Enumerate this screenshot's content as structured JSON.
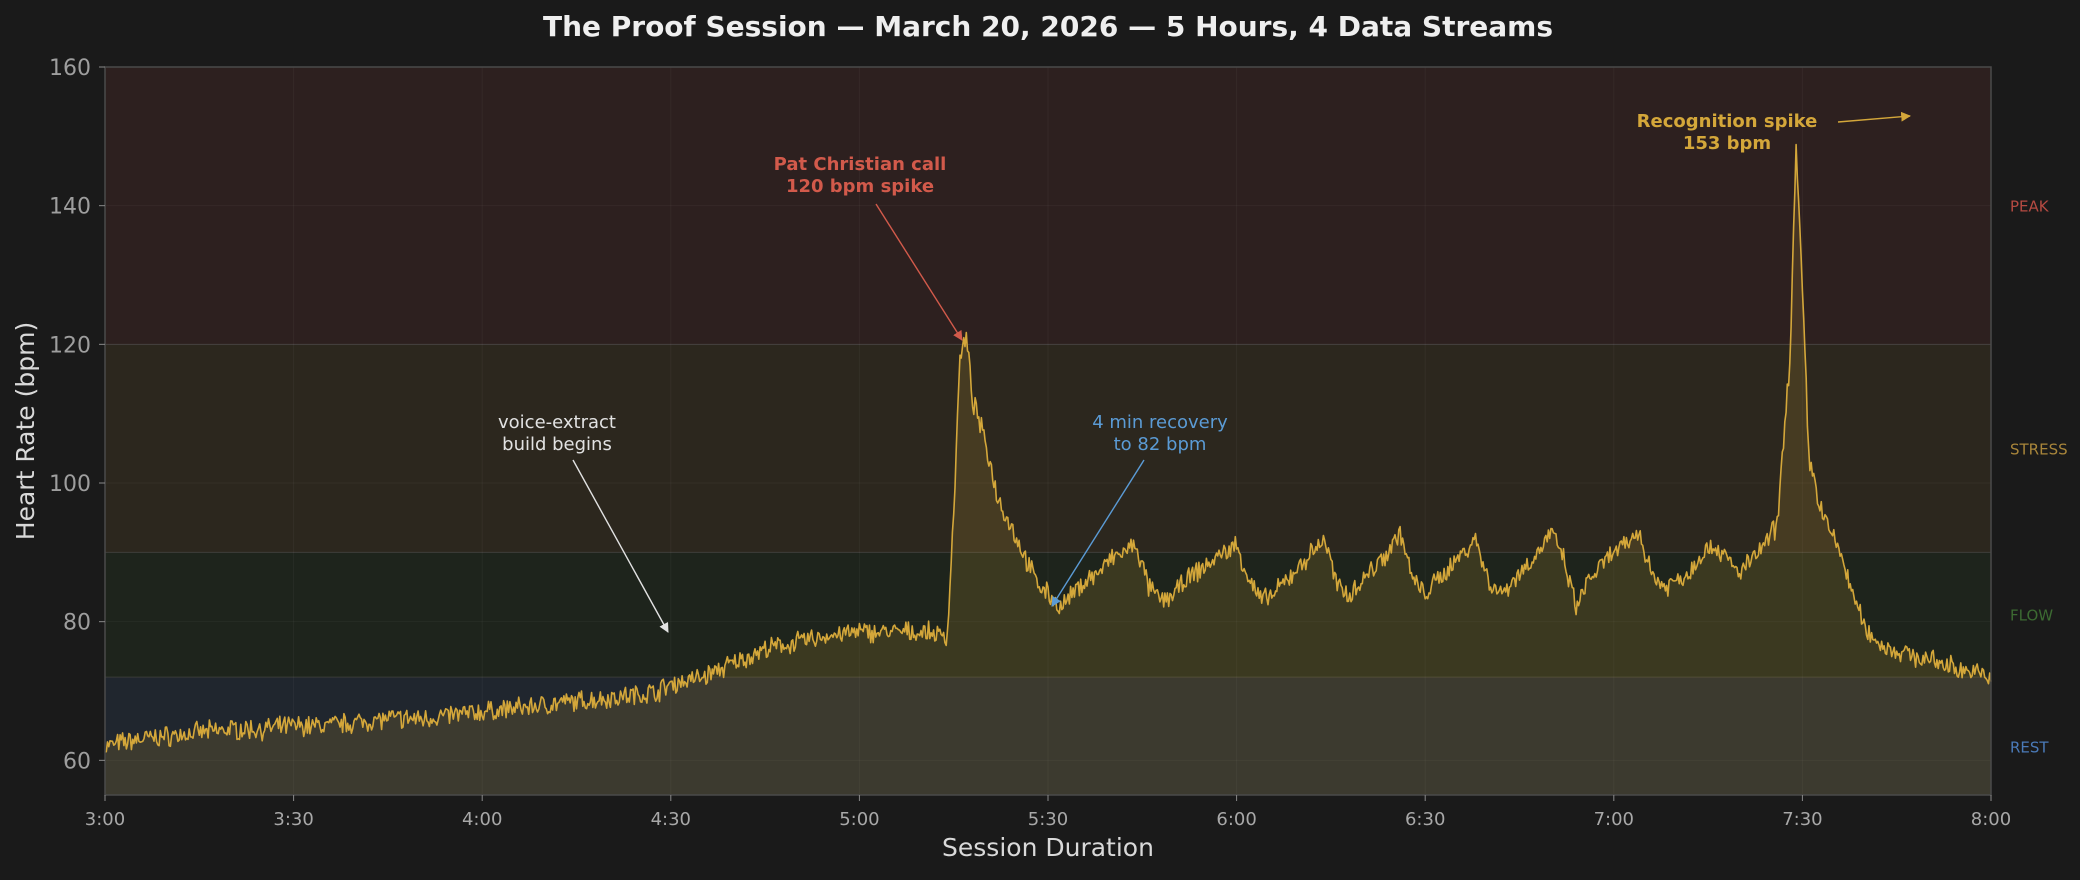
{
  "chart_data": {
    "type": "area",
    "title": "The Proof Session — March 20, 2026 — 5 Hours, 4 Data Streams",
    "xlabel": "Session Duration",
    "ylabel": "Heart Rate (bpm)",
    "x_ticks": [
      "3:00",
      "3:30",
      "4:00",
      "4:30",
      "5:00",
      "5:30",
      "6:00",
      "6:30",
      "7:00",
      "7:30",
      "8:00"
    ],
    "xlim_minutes": [
      0,
      300
    ],
    "ylim": [
      55,
      160
    ],
    "y_ticks": [
      60,
      80,
      100,
      120,
      140,
      160
    ],
    "grid": true,
    "line_color": "#d4a73a",
    "zones": [
      {
        "name": "REST",
        "from": 55,
        "to": 72,
        "color": "#4a7ab8"
      },
      {
        "name": "FLOW",
        "from": 72,
        "to": 90,
        "color": "#3c6a32"
      },
      {
        "name": "STRESS",
        "from": 90,
        "to": 120,
        "color": "#a8853a"
      },
      {
        "name": "PEAK",
        "from": 120,
        "to": 160,
        "color": "#b54a42"
      }
    ],
    "series": [
      {
        "x_minutes": [
          0,
          5,
          10,
          15,
          20,
          25,
          30,
          35,
          40,
          45,
          50,
          55,
          60,
          65,
          70,
          75,
          80,
          85,
          88,
          90,
          95,
          100,
          105,
          110,
          115,
          120,
          125,
          130,
          134,
          135,
          136,
          137,
          138,
          140,
          142,
          144,
          146,
          148,
          150,
          152,
          154,
          156,
          158,
          160,
          162,
          164,
          166,
          168,
          170,
          172,
          175,
          178,
          180,
          182,
          184,
          186,
          188,
          190,
          192,
          194,
          196,
          198,
          200,
          202,
          204,
          206,
          208,
          210,
          212,
          214,
          216,
          218,
          220,
          222,
          224,
          226,
          228,
          230,
          232,
          234,
          236,
          238,
          240,
          242,
          244,
          246,
          248,
          250,
          252,
          254,
          256,
          258,
          260,
          262,
          264,
          266,
          268,
          269,
          270,
          271,
          272,
          273,
          274,
          276,
          278,
          280,
          282,
          284,
          286,
          288,
          290,
          292,
          294,
          296,
          298,
          300
        ],
        "y": [
          62,
          63,
          63.5,
          64,
          64.5,
          64.5,
          65,
          65,
          65.5,
          66,
          66,
          66.5,
          67,
          67.5,
          68,
          68.5,
          69,
          69.5,
          70,
          71,
          72,
          74,
          76,
          77,
          78,
          78.5,
          78.5,
          78.5,
          78,
          96,
          118,
          121,
          112,
          106,
          98,
          94,
          90,
          86,
          84,
          82,
          84,
          86,
          87,
          89,
          90,
          91,
          85,
          83,
          84,
          86,
          88,
          90,
          91,
          86,
          83,
          84,
          86,
          88,
          90,
          92,
          85,
          84,
          86,
          88,
          90,
          93,
          86,
          84,
          86,
          88,
          90,
          92,
          86,
          84,
          86,
          88,
          90,
          93,
          89,
          82,
          86,
          88,
          90,
          91,
          93,
          87,
          85,
          86,
          87,
          90,
          91,
          89,
          87,
          89,
          91,
          94,
          118,
          148,
          128,
          104,
          100,
          96,
          94,
          90,
          84,
          79,
          77,
          76,
          75.5,
          75,
          74.5,
          74,
          73.5,
          73,
          72.5,
          72
        ]
      }
    ],
    "annotations": [
      {
        "lines": [
          "Pat Christian call",
          "120 bpm spike"
        ],
        "color": "#d25a4b",
        "bold": true,
        "x_minutes": 137,
        "y": 120
      },
      {
        "lines": [
          "voice-extract",
          "build begins"
        ],
        "color": "#e2e2e2",
        "bold": false,
        "x_minutes": 90,
        "y": 78
      },
      {
        "lines": [
          "4 min recovery",
          "to 82 bpm"
        ],
        "color": "#5b9bd5",
        "bold": false,
        "x_minutes": 150,
        "y": 82
      },
      {
        "lines": [
          "Recognition spike",
          "153 bpm"
        ],
        "color": "#d4a73a",
        "bold": true,
        "x_minutes": 287,
        "y": 153
      }
    ]
  }
}
